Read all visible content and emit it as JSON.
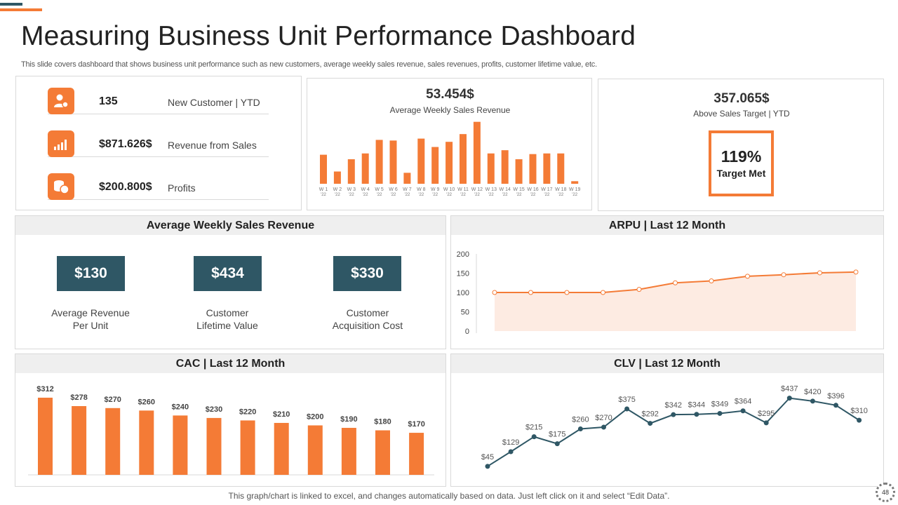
{
  "header": {
    "title": "Measuring Business Unit Performance Dashboard",
    "subtitle": "This slide covers dashboard that shows business unit performance such as new customers, average weekly sales revenue, sales revenues, profits, customer lifetime value, etc."
  },
  "kpis": [
    {
      "icon": "customer-icon",
      "value": "135",
      "label": "New Customer | YTD"
    },
    {
      "icon": "bar-signal-icon",
      "value": "$871.626$",
      "label": "Revenue from Sales"
    },
    {
      "icon": "coins-icon",
      "value": "$200.800$",
      "label": "Profits"
    }
  ],
  "weekly_sales": {
    "value": "53.454$",
    "label": "Average  Weekly Sales Revenue"
  },
  "sales_target": {
    "value": "357.065$",
    "label": "Above Sales Target  | YTD",
    "percent": "119%",
    "status": "Target Met"
  },
  "avg_weekly_panel": {
    "title": "Average Weekly Sales Revenue",
    "items": [
      {
        "value": "$130",
        "line1": "Average Revenue",
        "line2": "Per Unit"
      },
      {
        "value": "$434",
        "line1": "Customer",
        "line2": "Lifetime Value"
      },
      {
        "value": "$330",
        "line1": "Customer",
        "line2": "Acquisition Cost"
      }
    ]
  },
  "arpu_panel": {
    "title": "ARPU | Last 12 Month"
  },
  "cac_panel": {
    "title": "CAC | Last 12 Month"
  },
  "clv_panel": {
    "title": "CLV | Last 12 Month"
  },
  "footer": {
    "note": "This graph/chart is linked to excel, and changes automatically based on data. Just left click on it and select “Edit Data”.",
    "page": "48"
  },
  "colors": {
    "accent": "#f47b36",
    "dark": "#2f5765",
    "area": "#fdebe2"
  },
  "chart_data": [
    {
      "type": "bar",
      "title": "Average  Weekly Sales Revenue",
      "categories": [
        "W 1 '22",
        "W 2 '22",
        "W 3 '22",
        "W 4 '22",
        "W 5 '22",
        "W 6 '22",
        "W 7 '22",
        "W 8 '22",
        "W 9 '22",
        "W 10 '22",
        "W 11 '22",
        "W 12 '22",
        "W 13 '22",
        "W 14 '22",
        "W 15 '22",
        "W 16 '22",
        "W 17 '22",
        "W 18 '22",
        "W 19 '22"
      ],
      "values": [
        45,
        19,
        38,
        47,
        68,
        67,
        17,
        70,
        57,
        65,
        77,
        96,
        47,
        52,
        38,
        46,
        47,
        47,
        4
      ],
      "ylim": [
        0,
        100
      ]
    },
    {
      "type": "area",
      "title": "ARPU | Last 12 Month",
      "x": [
        1,
        2,
        3,
        4,
        5,
        6,
        7,
        8,
        9,
        10,
        11
      ],
      "values": [
        100,
        100,
        100,
        100,
        108,
        125,
        130,
        142,
        146,
        151,
        153
      ],
      "yticks": [
        "200",
        "150",
        "100",
        "50",
        "0"
      ],
      "ylim": [
        0,
        200
      ]
    },
    {
      "type": "bar",
      "title": "CAC | Last 12 Month",
      "values": [
        312,
        278,
        270,
        260,
        240,
        230,
        220,
        210,
        200,
        190,
        180,
        170
      ],
      "labels": [
        "$312",
        "$278",
        "$270",
        "$260",
        "$240",
        "$230",
        "$220",
        "$210",
        "$200",
        "$190",
        "$180",
        "$170"
      ],
      "ylim": [
        0,
        350
      ]
    },
    {
      "type": "line",
      "title": "CLV | Last 12 Month",
      "values": [
        45,
        129,
        215,
        175,
        260,
        270,
        375,
        292,
        342,
        344,
        349,
        364,
        295,
        437,
        420,
        396,
        310
      ],
      "labels": [
        "$45",
        "$129",
        "$215",
        "$175",
        "$260",
        "$270",
        "$375",
        "$292",
        "$342",
        "$344",
        "$349",
        "$364",
        "$295",
        "$437",
        "$420",
        "$396",
        "$310"
      ],
      "ylim": [
        0,
        500
      ]
    }
  ]
}
